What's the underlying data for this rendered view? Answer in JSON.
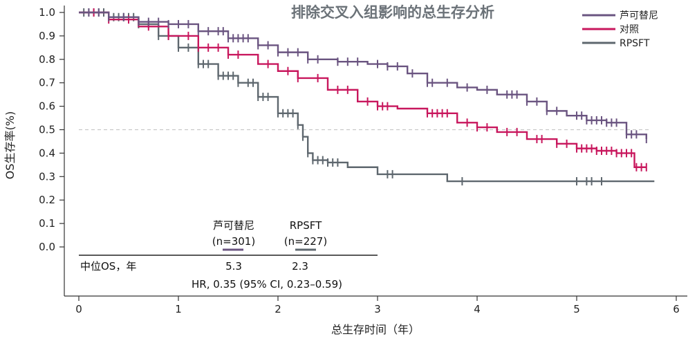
{
  "chart_data": {
    "type": "line",
    "title": "排除交叉入组影响的总生存分析",
    "xlabel": "总生存时间（年）",
    "ylabel": "OS生存率(%)",
    "xlim": [
      0,
      6
    ],
    "ylim": [
      0,
      1.0
    ],
    "x_ticks": [
      "0",
      "1",
      "2",
      "3",
      "4",
      "5",
      "6"
    ],
    "y_ticks": [
      "0.0",
      "0.1",
      "0.2",
      "0.3",
      "0.4",
      "0.5",
      "0.6",
      "0.7",
      "0.8",
      "0.9",
      "1.0"
    ],
    "reference_line_y": 0.5,
    "legend_position": "top-right",
    "series": [
      {
        "name": "芦可替尼",
        "color": "#6a5480",
        "x": [
          0,
          0.3,
          0.6,
          0.9,
          1.2,
          1.5,
          1.8,
          2.0,
          2.3,
          2.6,
          2.9,
          3.1,
          3.3,
          3.5,
          3.8,
          4.0,
          4.2,
          4.5,
          4.7,
          4.9,
          5.1,
          5.3,
          5.5,
          5.7
        ],
        "y": [
          1.0,
          0.98,
          0.96,
          0.95,
          0.92,
          0.89,
          0.86,
          0.83,
          0.8,
          0.79,
          0.78,
          0.77,
          0.74,
          0.7,
          0.68,
          0.67,
          0.65,
          0.62,
          0.58,
          0.56,
          0.54,
          0.53,
          0.48,
          0.46
        ],
        "censor_x": [
          0.1,
          0.2,
          0.3,
          0.45,
          0.6,
          0.7,
          0.8,
          0.9,
          1.0,
          1.1,
          1.2,
          1.3,
          1.4,
          1.45,
          1.5,
          1.55,
          1.6,
          1.65,
          1.7,
          1.8,
          1.9,
          2.0,
          2.1,
          2.2,
          2.3,
          2.4,
          2.6,
          2.7,
          2.8,
          3.0,
          3.1,
          3.2,
          3.35,
          3.5,
          3.55,
          3.7,
          3.9,
          4.1,
          4.3,
          4.35,
          4.4,
          4.5,
          4.6,
          4.7,
          4.8,
          5.0,
          5.05,
          5.1,
          5.15,
          5.2,
          5.25,
          5.3,
          5.35,
          5.4,
          5.5,
          5.55,
          5.6,
          5.7
        ]
      },
      {
        "name": "对照",
        "color": "#c8175d",
        "x": [
          0,
          0.3,
          0.6,
          0.9,
          1.2,
          1.5,
          1.8,
          2.0,
          2.2,
          2.5,
          2.8,
          3.0,
          3.2,
          3.5,
          3.8,
          4.0,
          4.2,
          4.5,
          4.8,
          5.0,
          5.2,
          5.4,
          5.5,
          5.58,
          5.7
        ],
        "y": [
          1.0,
          0.97,
          0.94,
          0.9,
          0.85,
          0.82,
          0.78,
          0.75,
          0.72,
          0.67,
          0.62,
          0.6,
          0.59,
          0.57,
          0.53,
          0.51,
          0.49,
          0.46,
          0.44,
          0.42,
          0.41,
          0.4,
          0.4,
          0.34,
          0.34
        ],
        "censor_x": [
          0.15,
          0.3,
          0.5,
          0.7,
          0.9,
          1.1,
          1.2,
          1.3,
          1.4,
          1.5,
          1.6,
          1.9,
          2.1,
          2.2,
          2.4,
          2.6,
          2.7,
          2.9,
          3.0,
          3.05,
          3.1,
          3.5,
          3.55,
          3.6,
          3.65,
          3.7,
          3.9,
          4.0,
          4.1,
          4.3,
          4.4,
          4.6,
          4.65,
          4.8,
          4.9,
          5.0,
          5.05,
          5.1,
          5.15,
          5.2,
          5.25,
          5.3,
          5.35,
          5.4,
          5.45,
          5.5,
          5.55,
          5.6,
          5.65,
          5.7
        ]
      },
      {
        "name": "RPSFT",
        "color": "#5e676e",
        "x": [
          0,
          0.3,
          0.6,
          0.8,
          1.0,
          1.2,
          1.4,
          1.6,
          1.8,
          2.0,
          2.2,
          2.25,
          2.3,
          2.35,
          2.5,
          2.7,
          3.0,
          3.4,
          3.5,
          3.7,
          4.0,
          5.0,
          5.78
        ],
        "y": [
          1.0,
          0.98,
          0.95,
          0.9,
          0.85,
          0.78,
          0.73,
          0.7,
          0.64,
          0.57,
          0.52,
          0.47,
          0.4,
          0.37,
          0.36,
          0.34,
          0.31,
          0.31,
          0.31,
          0.28,
          0.28,
          0.28,
          0.28
        ],
        "censor_x": [
          0.05,
          0.1,
          0.15,
          0.2,
          0.25,
          0.3,
          0.35,
          0.4,
          0.45,
          0.5,
          0.55,
          0.6,
          0.7,
          0.8,
          0.9,
          1.0,
          1.1,
          1.2,
          1.25,
          1.3,
          1.4,
          1.45,
          1.5,
          1.55,
          1.6,
          1.7,
          1.75,
          1.8,
          1.85,
          1.9,
          2.0,
          2.05,
          2.1,
          2.15,
          2.2,
          2.25,
          2.3,
          2.35,
          2.4,
          2.45,
          2.5,
          2.55,
          2.6,
          3.1,
          3.15,
          3.85,
          5.0,
          5.1,
          5.15,
          5.25
        ]
      }
    ],
    "annotation": {
      "col1_name": "芦可替尼",
      "col1_n": "(n=301)",
      "col2_name": "RPSFT",
      "col2_n": "(n=227)",
      "row_label": "中位OS，年",
      "col1_value": "5.3",
      "col2_value": "2.3",
      "hr_text": "HR, 0.35 (95% CI, 0.23–0.59)"
    }
  }
}
